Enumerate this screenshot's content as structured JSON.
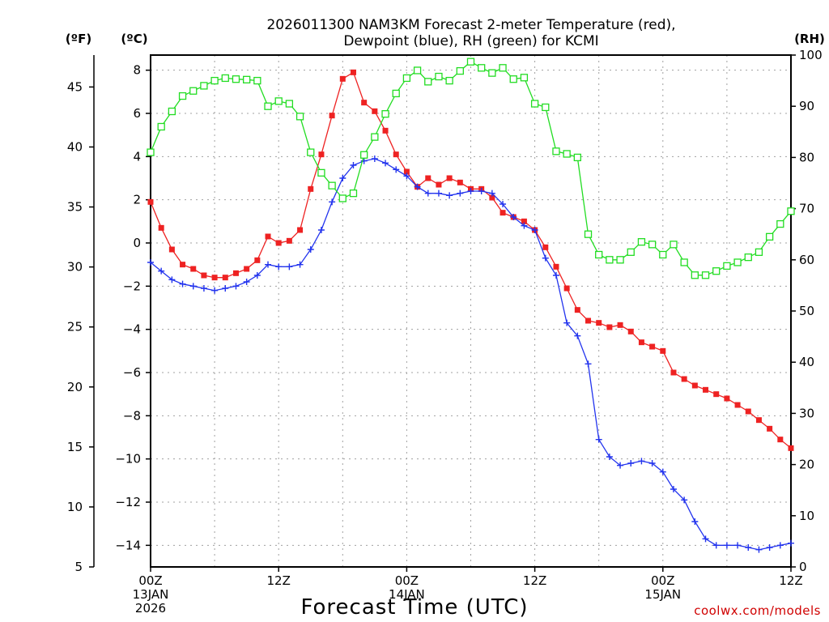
{
  "chart_data": {
    "type": "line",
    "title": [
      "2026011300 NAM3KM Forecast 2-meter Temperature (red),",
      "Dewpoint (blue), RH (green) for KCMI"
    ],
    "xlabel": "Forecast Time (UTC)",
    "credit": "coolwx.com/models",
    "units": {
      "fahrenheit": "(ºF)",
      "celsius": "(ºC)",
      "rh": "(RH)"
    },
    "x_hours_range": [
      0,
      60
    ],
    "x_ticks": [
      {
        "hour": 0,
        "lines": [
          "00Z",
          "13JAN",
          "2026"
        ]
      },
      {
        "hour": 12,
        "lines": [
          "12Z"
        ]
      },
      {
        "hour": 24,
        "lines": [
          "00Z",
          "14JAN"
        ]
      },
      {
        "hour": 36,
        "lines": [
          "12Z"
        ]
      },
      {
        "hour": 48,
        "lines": [
          "00Z",
          "15JAN"
        ]
      },
      {
        "hour": 60,
        "lines": [
          "12Z"
        ]
      }
    ],
    "ylim_c": [
      -15,
      8.7
    ],
    "yticks_c": [
      "8",
      "6",
      "4",
      "2",
      "0",
      "−2",
      "−4",
      "−6",
      "−8",
      "−10",
      "−12",
      "−14"
    ],
    "yticks_f": [
      "45",
      "40",
      "35",
      "30",
      "25",
      "20",
      "15",
      "10",
      "5"
    ],
    "ylim_rh": [
      0,
      100
    ],
    "yticks_rh": [
      "100",
      "90",
      "80",
      "70",
      "60",
      "50",
      "40",
      "30",
      "20",
      "10",
      "0"
    ],
    "series": [
      {
        "name": "2-meter Temperature",
        "unit": "C",
        "color": "#ee2222",
        "marker": "filled-square",
        "values": [
          1.9,
          0.7,
          -0.3,
          -1.0,
          -1.2,
          -1.5,
          -1.6,
          -1.6,
          -1.4,
          -1.2,
          -0.8,
          0.3,
          0.0,
          0.1,
          0.6,
          2.5,
          4.1,
          5.9,
          7.6,
          7.9,
          6.5,
          6.1,
          5.2,
          4.1,
          3.3,
          2.6,
          3.0,
          2.7,
          3.0,
          2.8,
          2.5,
          2.5,
          2.1,
          1.4,
          1.2,
          1.0,
          0.6,
          -0.2,
          -1.1,
          -2.1,
          -3.1,
          -3.6,
          -3.7,
          -3.9,
          -3.8,
          -4.1,
          -4.6,
          -4.8,
          -5.0,
          -6.0,
          -6.3,
          -6.6,
          -6.8,
          -7.0,
          -7.2,
          -7.5,
          -7.8,
          -8.2,
          -8.6,
          -9.1,
          -9.5
        ]
      },
      {
        "name": "Dewpoint",
        "unit": "C",
        "color": "#2233ee",
        "marker": "plus",
        "values": [
          -0.9,
          -1.3,
          -1.7,
          -1.9,
          -2.0,
          -2.1,
          -2.2,
          -2.1,
          -2.0,
          -1.8,
          -1.5,
          -1.0,
          -1.1,
          -1.1,
          -1.0,
          -0.3,
          0.6,
          1.9,
          3.0,
          3.6,
          3.8,
          3.9,
          3.7,
          3.4,
          3.1,
          2.6,
          2.3,
          2.3,
          2.2,
          2.3,
          2.4,
          2.4,
          2.3,
          1.8,
          1.2,
          0.8,
          0.6,
          -0.7,
          -1.5,
          -3.7,
          -4.3,
          -5.6,
          -9.1,
          -9.9,
          -10.3,
          -10.2,
          -10.1,
          -10.2,
          -10.6,
          -11.4,
          -11.9,
          -12.9,
          -13.7,
          -14.0,
          -14.0,
          -14.0,
          -14.1,
          -14.2,
          -14.1,
          -14.0,
          -13.9
        ]
      },
      {
        "name": "RH",
        "unit": "%",
        "color": "#22dd22",
        "marker": "open-square",
        "values": [
          81,
          86,
          89,
          92,
          93,
          94,
          95,
          95.5,
          95.3,
          95.2,
          95,
          90,
          91,
          90.5,
          88,
          81,
          77,
          74.5,
          72,
          73,
          80.5,
          84,
          88.5,
          92.5,
          95.5,
          97,
          94.8,
          95.8,
          95,
          96.9,
          98.7,
          97.5,
          96.5,
          97.5,
          95.3,
          95.6,
          90.5,
          89.8,
          81.2,
          80.7,
          80,
          65,
          61,
          60,
          60,
          61.5,
          63.5,
          63,
          61,
          63,
          59.5,
          57,
          57,
          57.8,
          58.8,
          59.5,
          60.5,
          61.5,
          64.5,
          67,
          69.5
        ]
      }
    ]
  }
}
